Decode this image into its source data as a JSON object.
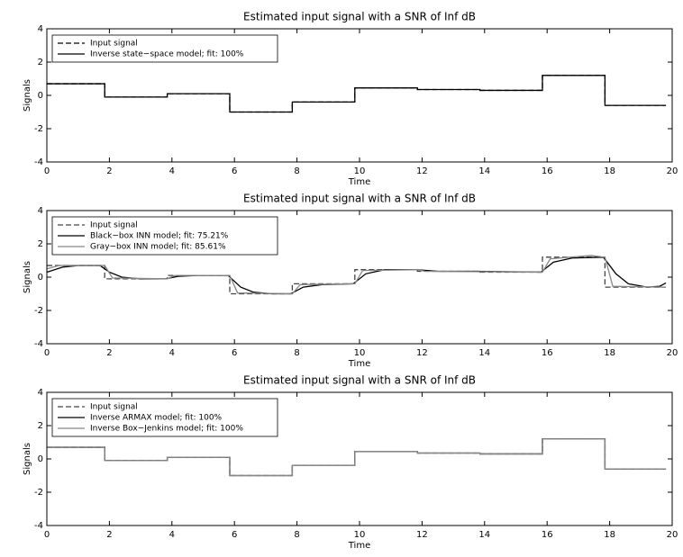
{
  "chart_data": [
    {
      "type": "line",
      "title": "Estimated input signal with a SNR of Inf dB",
      "xlabel": "Time",
      "ylabel": "Signals",
      "xlim": [
        0,
        20
      ],
      "ylim": [
        -4,
        4
      ],
      "xticks": [
        0,
        2,
        4,
        6,
        8,
        10,
        12,
        14,
        16,
        18,
        20
      ],
      "yticks": [
        -4,
        -2,
        0,
        2,
        4
      ],
      "legend": "upper left",
      "x": [
        0,
        1.85,
        1.85,
        3.85,
        3.85,
        5.85,
        5.85,
        7.85,
        7.85,
        9.85,
        9.85,
        11.85,
        11.85,
        13.85,
        13.85,
        15.85,
        15.85,
        17.85,
        17.85,
        19.8
      ],
      "series": [
        {
          "name": "Input signal",
          "color": "#000000",
          "linestyle": "dashed",
          "values": [
            0.7,
            0.7,
            -0.1,
            -0.1,
            0.1,
            0.1,
            -1.0,
            -1.0,
            -0.4,
            -0.4,
            0.45,
            0.45,
            0.35,
            0.35,
            0.3,
            0.3,
            1.2,
            1.2,
            -0.6,
            -0.6
          ]
        },
        {
          "name": "Inverse state−space model; fit: 100%",
          "color": "#000000",
          "linestyle": "solid",
          "values": [
            0.7,
            0.7,
            -0.1,
            -0.1,
            0.1,
            0.1,
            -1.0,
            -1.0,
            -0.4,
            -0.4,
            0.45,
            0.45,
            0.35,
            0.35,
            0.3,
            0.3,
            1.2,
            1.2,
            -0.6,
            -0.6
          ]
        }
      ]
    },
    {
      "type": "line",
      "title": "Estimated input signal with a SNR of Inf dB",
      "xlabel": "Time",
      "ylabel": "Signals",
      "xlim": [
        0,
        20
      ],
      "ylim": [
        -4,
        4
      ],
      "xticks": [
        0,
        2,
        4,
        6,
        8,
        10,
        12,
        14,
        16,
        18,
        20
      ],
      "yticks": [
        -4,
        -2,
        0,
        2,
        4
      ],
      "legend": "upper left",
      "x": [
        0,
        1.85,
        1.85,
        3.85,
        3.85,
        5.85,
        5.85,
        7.85,
        7.85,
        9.85,
        9.85,
        11.85,
        11.85,
        13.85,
        13.85,
        15.85,
        15.85,
        17.85,
        17.85,
        19.8
      ],
      "series": [
        {
          "name": "Input signal",
          "color": "#444444",
          "linestyle": "dashed",
          "values": [
            0.7,
            0.7,
            -0.1,
            -0.1,
            0.1,
            0.1,
            -1.0,
            -1.0,
            -0.4,
            -0.4,
            0.45,
            0.45,
            0.35,
            0.35,
            0.3,
            0.3,
            1.2,
            1.2,
            -0.6,
            -0.6
          ]
        },
        {
          "name": "Black−box INN model; fit: 75.21%",
          "color": "#000000",
          "linestyle": "solid",
          "x": [
            0,
            0.5,
            1,
            1.7,
            2.0,
            2.4,
            3,
            3.8,
            4.2,
            4.8,
            5.8,
            6.2,
            6.6,
            7.2,
            7.8,
            8.2,
            8.8,
            9.8,
            10.2,
            10.8,
            11.8,
            12.5,
            13.8,
            15.8,
            16.2,
            16.8,
            17.8,
            18.2,
            18.6,
            19.2,
            19.6,
            19.8
          ],
          "values": [
            0.3,
            0.6,
            0.7,
            0.7,
            0.3,
            0.0,
            -0.1,
            -0.1,
            0.05,
            0.1,
            0.1,
            -0.6,
            -0.9,
            -1.0,
            -1.0,
            -0.6,
            -0.45,
            -0.4,
            0.2,
            0.45,
            0.45,
            0.35,
            0.35,
            0.3,
            0.9,
            1.15,
            1.2,
            0.2,
            -0.4,
            -0.6,
            -0.55,
            -0.35
          ]
        },
        {
          "name": "Gray−box INN model; fit: 85.61%",
          "color": "#888888",
          "linestyle": "solid",
          "x": [
            0,
            0.4,
            1.85,
            2.1,
            3.85,
            4.1,
            5.85,
            6.1,
            7.85,
            8.1,
            9.85,
            10.1,
            11.85,
            12.1,
            15.85,
            16.1,
            17.4,
            17.85,
            18.1,
            19.8
          ],
          "values": [
            0.5,
            0.7,
            0.7,
            -0.05,
            -0.1,
            0.1,
            0.1,
            -0.95,
            -1.0,
            -0.45,
            -0.4,
            0.4,
            0.45,
            0.35,
            0.3,
            1.1,
            1.3,
            1.2,
            -0.55,
            -0.6
          ]
        }
      ]
    },
    {
      "type": "line",
      "title": "Estimated input signal with a SNR of Inf dB",
      "xlabel": "Time",
      "ylabel": "Signals",
      "xlim": [
        0,
        20
      ],
      "ylim": [
        -4,
        4
      ],
      "xticks": [
        0,
        2,
        4,
        6,
        8,
        10,
        12,
        14,
        16,
        18,
        20
      ],
      "yticks": [
        -4,
        -2,
        0,
        2,
        4
      ],
      "legend": "upper left",
      "x": [
        0,
        1.85,
        1.85,
        3.85,
        3.85,
        5.85,
        5.85,
        7.85,
        7.85,
        9.85,
        9.85,
        11.85,
        11.85,
        13.85,
        13.85,
        15.85,
        15.85,
        17.85,
        17.85,
        19.8
      ],
      "series": [
        {
          "name": "Input signal",
          "color": "#444444",
          "linestyle": "dashed",
          "values": [
            0.7,
            0.7,
            -0.1,
            -0.1,
            0.1,
            0.1,
            -1.0,
            -1.0,
            -0.4,
            -0.4,
            0.45,
            0.45,
            0.35,
            0.35,
            0.3,
            0.3,
            1.2,
            1.2,
            -0.6,
            -0.6
          ]
        },
        {
          "name": "Inverse ARMAX model; fit: 100%",
          "color": "#000000",
          "linestyle": "solid",
          "values": [
            0.7,
            0.7,
            -0.1,
            -0.1,
            0.1,
            0.1,
            -1.0,
            -1.0,
            -0.4,
            -0.4,
            0.45,
            0.45,
            0.35,
            0.35,
            0.3,
            0.3,
            1.2,
            1.2,
            -0.6,
            -0.6
          ]
        },
        {
          "name": "Inverse Box−Jenkins model; fit: 100%",
          "color": "#888888",
          "linestyle": "solid",
          "values": [
            0.7,
            0.7,
            -0.1,
            -0.1,
            0.1,
            0.1,
            -1.0,
            -1.0,
            -0.4,
            -0.4,
            0.45,
            0.45,
            0.35,
            0.35,
            0.3,
            0.3,
            1.2,
            1.2,
            -0.6,
            -0.6
          ]
        }
      ]
    }
  ]
}
